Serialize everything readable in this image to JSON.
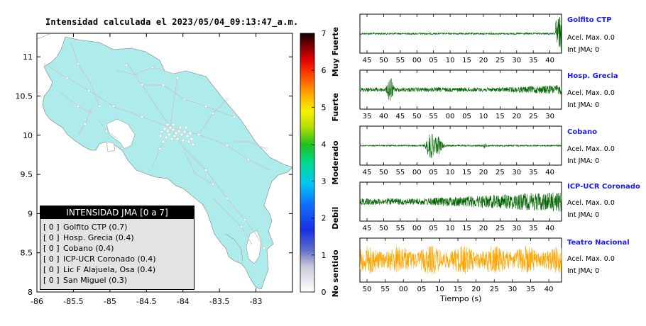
{
  "map": {
    "title": "Intensidad calculada el 2023/05/04_09:13:47_a.m.",
    "x_ticks": [
      "-86",
      "-85.5",
      "-85",
      "-84.5",
      "-84",
      "-83.5",
      "-83"
    ],
    "y_ticks": [
      "11",
      "10.5",
      "10",
      "9.5",
      "9",
      "8.5",
      "8"
    ],
    "land_color": "#aeecec",
    "road_color": "#c8c8c8"
  },
  "colorbar": {
    "ticks": [
      "0",
      "1",
      "2",
      "3",
      "4",
      "5",
      "6",
      "7"
    ],
    "categories": [
      "No sentido",
      "Debil",
      "Moderado",
      "Fuerte",
      "Muy Fuerte"
    ]
  },
  "legend": {
    "title": "INTENSIDAD JMA [0 a 7]",
    "rows": [
      {
        "level": "[ 0 ]",
        "text": "Golfito CTP (0.7)"
      },
      {
        "level": "[ 0 ]",
        "text": "Hosp. Grecia (0.4)"
      },
      {
        "level": "[ 0 ]",
        "text": "Cobano (0.4)"
      },
      {
        "level": "[ 0 ]",
        "text": "ICP-UCR Coronado (0.4)"
      },
      {
        "level": "[ 0 ]",
        "text": "Lic F Alajuela, Osa (0.4)"
      },
      {
        "level": "[ 0 ]",
        "text": "San Miguel (0.3)"
      }
    ]
  },
  "stations": [
    {
      "name": "Golfito CTP",
      "accel": "Acel. Max. 0.0",
      "int": "Int JMA: 0",
      "color": "#006400",
      "ticks": [
        "45",
        "50",
        "55",
        "00",
        "05",
        "10",
        "15",
        "20",
        "25",
        "30",
        "35",
        "40"
      ]
    },
    {
      "name": "Hosp. Grecia",
      "accel": "Acel. Max. 0.0",
      "int": "Int JMA: 0",
      "color": "#006400",
      "ticks": [
        "35",
        "40",
        "45",
        "50",
        "55",
        "00",
        "05",
        "10",
        "15",
        "20",
        "25",
        "30"
      ]
    },
    {
      "name": "Cobano",
      "accel": "Acel. Max. 0.0",
      "int": "Int JMA: 0",
      "color": "#006400",
      "ticks": [
        "45",
        "50",
        "55",
        "00",
        "05",
        "10",
        "15",
        "20",
        "25",
        "30",
        "35",
        "40"
      ]
    },
    {
      "name": "ICP-UCR Coronado",
      "accel": "Acel. Max. 0.0",
      "int": "Int JMA: 0",
      "color": "#006400",
      "ticks": [
        "45",
        "50",
        "55",
        "00",
        "05",
        "10",
        "15",
        "20",
        "25",
        "30",
        "35",
        "40"
      ]
    },
    {
      "name": "Teatro Nacional",
      "accel": "Acel. Max. 0.0",
      "int": "Int JMA: 0",
      "color": "#ffa500",
      "ticks": [
        "50",
        "55",
        "00",
        "05",
        "10",
        "15",
        "20",
        "25",
        "30",
        "35",
        "40"
      ]
    }
  ],
  "time_label": "Tiempo (s)",
  "chart_data": {
    "type": "map",
    "title": "Intensidad calculada el 2023/05/04_09:13:47_a.m.",
    "xlim": [
      -86,
      -82.5
    ],
    "ylim": [
      8,
      11.3
    ],
    "colorbar_range": [
      0,
      7
    ],
    "series": [
      {
        "name": "INTENSIDAD JMA [0 a 7]",
        "categories": [
          "Golfito CTP",
          "Hosp. Grecia",
          "Cobano",
          "ICP-UCR Coronado",
          "Lic F Alajuela, Osa",
          "San Miguel"
        ],
        "values": [
          0.7,
          0.4,
          0.4,
          0.4,
          0.4,
          0.3
        ]
      }
    ]
  }
}
